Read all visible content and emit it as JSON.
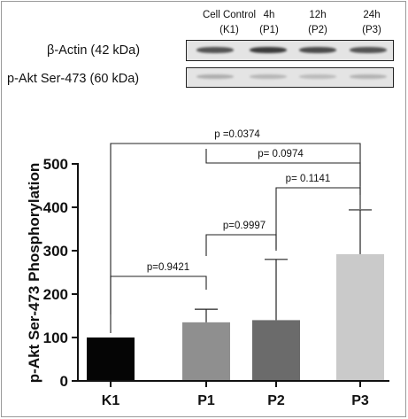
{
  "blot": {
    "lanes": [
      {
        "id": "K1",
        "line1": "Cell Control",
        "line2": "(K1)"
      },
      {
        "id": "P1",
        "line1": "4h",
        "line2": "(P1)"
      },
      {
        "id": "P2",
        "line1": "12h",
        "line2": "(P2)"
      },
      {
        "id": "P3",
        "line1": "24h",
        "line2": "(P3)"
      }
    ],
    "rows": [
      {
        "label": "β-Actin (42 kDa)",
        "band_color": "#3a3a3a",
        "band_strength": [
          0.85,
          1.0,
          0.9,
          0.85
        ]
      },
      {
        "label": "p-Akt Ser-473 (60 kDa)",
        "band_color": "#8a8a8a",
        "band_strength": [
          0.6,
          0.5,
          0.45,
          0.55
        ]
      }
    ]
  },
  "chart_data": {
    "type": "bar",
    "categories": [
      "K1",
      "P1",
      "P2",
      "P3"
    ],
    "values": [
      100,
      135,
      140,
      292
    ],
    "error_upper": [
      0,
      30,
      140,
      102
    ],
    "bar_colors": [
      "#050505",
      "#8f8f8f",
      "#6b6b6b",
      "#cacaca"
    ],
    "ylabel": "p-Akt  Ser-473 Phosphorylation",
    "ylim": [
      0,
      500
    ],
    "yticks": [
      0,
      100,
      200,
      300,
      400,
      500
    ],
    "grid": false,
    "comparisons": [
      {
        "from": "K1",
        "to": "P1",
        "label": "p=0.9421"
      },
      {
        "from": "P1",
        "to": "P2",
        "label": "p=0.9997"
      },
      {
        "from": "P2",
        "to": "P3",
        "label": "p= 0.1141"
      },
      {
        "from": "P1",
        "to": "P3",
        "label": "p= 0.0974"
      },
      {
        "from": "K1",
        "to": "P3",
        "label": "p =0.0374"
      }
    ]
  }
}
